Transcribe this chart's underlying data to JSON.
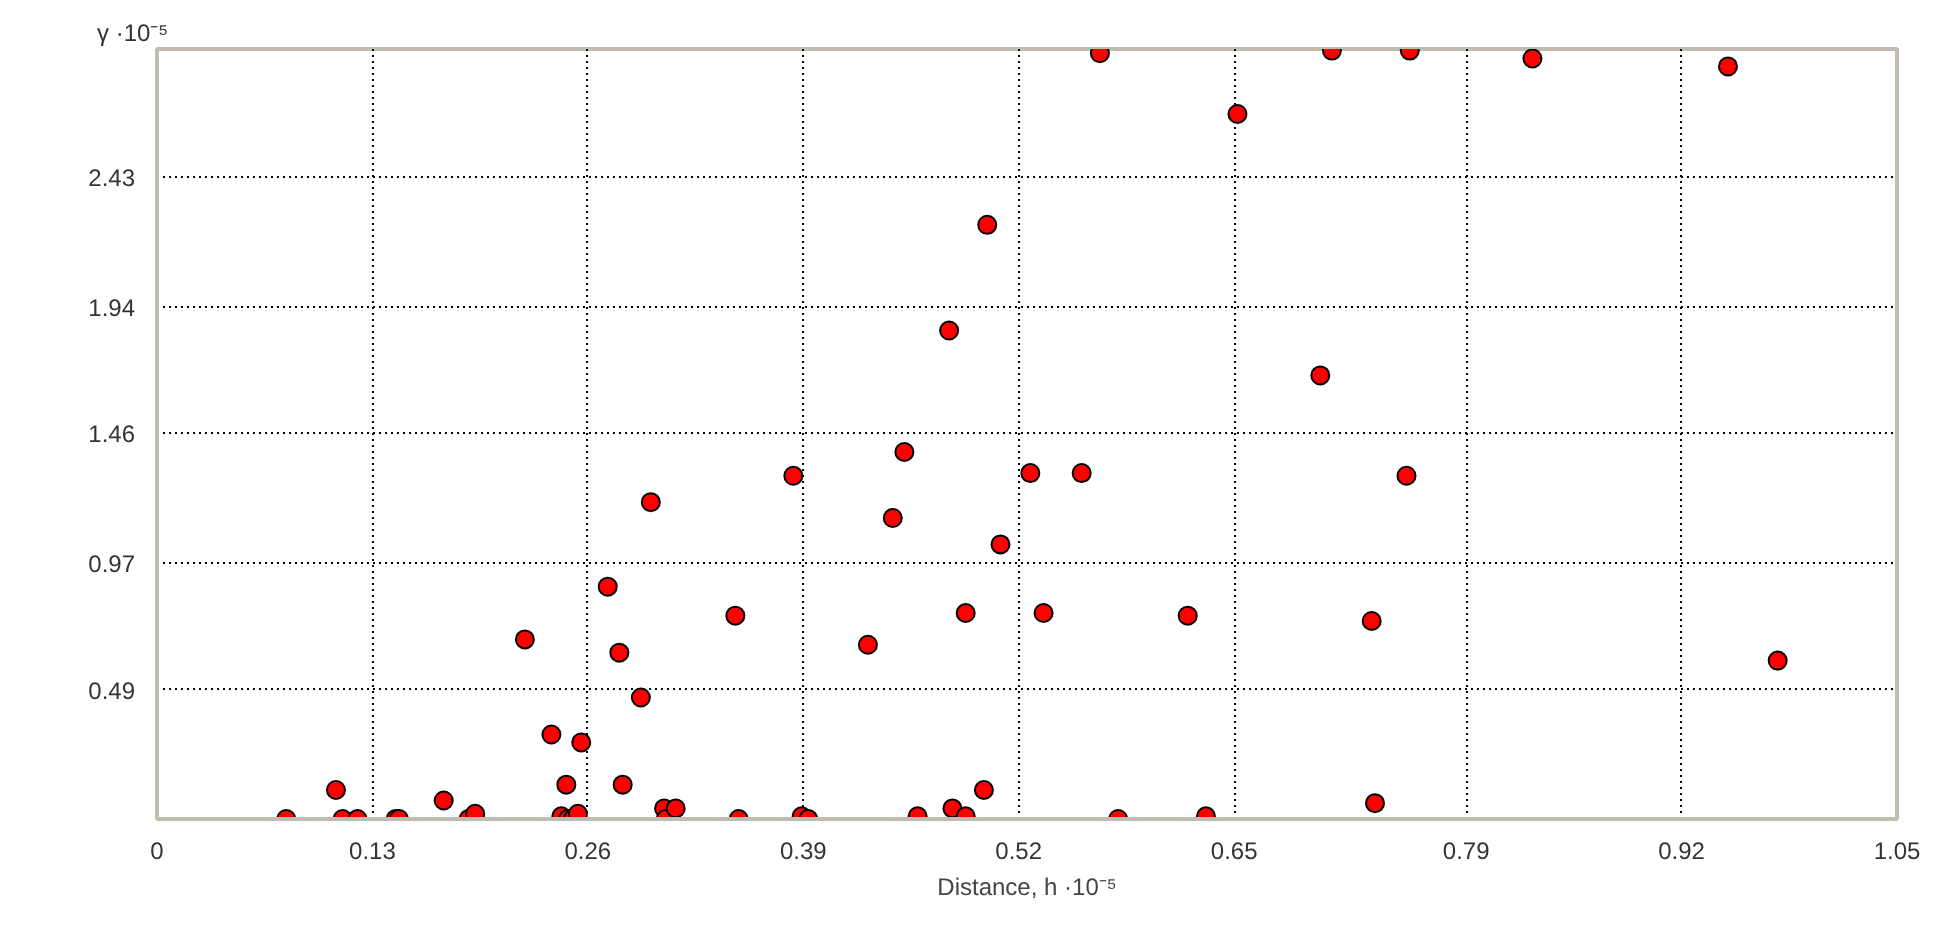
{
  "chart_data": {
    "type": "scatter",
    "xlabel": "Distance, h ·10⁻⁵",
    "ylabel": "γ ·10⁻⁵",
    "x": [
      0.078,
      0.108,
      0.112,
      0.121,
      0.144,
      0.146,
      0.173,
      0.188,
      0.192,
      0.222,
      0.238,
      0.244,
      0.247,
      0.248,
      0.251,
      0.254,
      0.256,
      0.272,
      0.279,
      0.281,
      0.292,
      0.298,
      0.306,
      0.307,
      0.313,
      0.349,
      0.351,
      0.384,
      0.389,
      0.393,
      0.429,
      0.444,
      0.451,
      0.459,
      0.478,
      0.48,
      0.488,
      0.488,
      0.499,
      0.501,
      0.509,
      0.527,
      0.535,
      0.558,
      0.569,
      0.58,
      0.622,
      0.633,
      0.652,
      0.702,
      0.709,
      0.733,
      0.735,
      0.754,
      0.756,
      0.83,
      0.948,
      0.978
    ],
    "series": [
      {
        "color": "#ff0000",
        "values": [
          0,
          0.11,
          0,
          0,
          0,
          0,
          0.07,
          0,
          0.02,
          0.68,
          0.32,
          0.01,
          0.13,
          0,
          0,
          0.02,
          0.29,
          0.88,
          0.63,
          0.13,
          0.46,
          1.2,
          0.04,
          0,
          0.04,
          0.77,
          0,
          1.3,
          0.01,
          0,
          0.66,
          1.14,
          1.39,
          0.01,
          1.85,
          0.04,
          0.01,
          0.78,
          0.11,
          2.25,
          1.04,
          1.31,
          0.78,
          1.31,
          2.9,
          0,
          0.77,
          0.01,
          2.67,
          1.68,
          2.91,
          0.75,
          0.06,
          1.3,
          2.91,
          2.88,
          2.85,
          0.6
        ]
      }
    ],
    "xlim": [
      0,
      1.05
    ],
    "ylim": [
      0,
      2.916
    ],
    "xticks": [
      0,
      0.13,
      0.26,
      0.39,
      0.52,
      0.65,
      0.79,
      0.92,
      1.05
    ],
    "yticks": [
      0.49,
      0.97,
      1.46,
      1.94,
      2.43,
      {
        "value": 2.916,
        "label": null
      }
    ],
    "grid": true,
    "marker": "circle"
  }
}
